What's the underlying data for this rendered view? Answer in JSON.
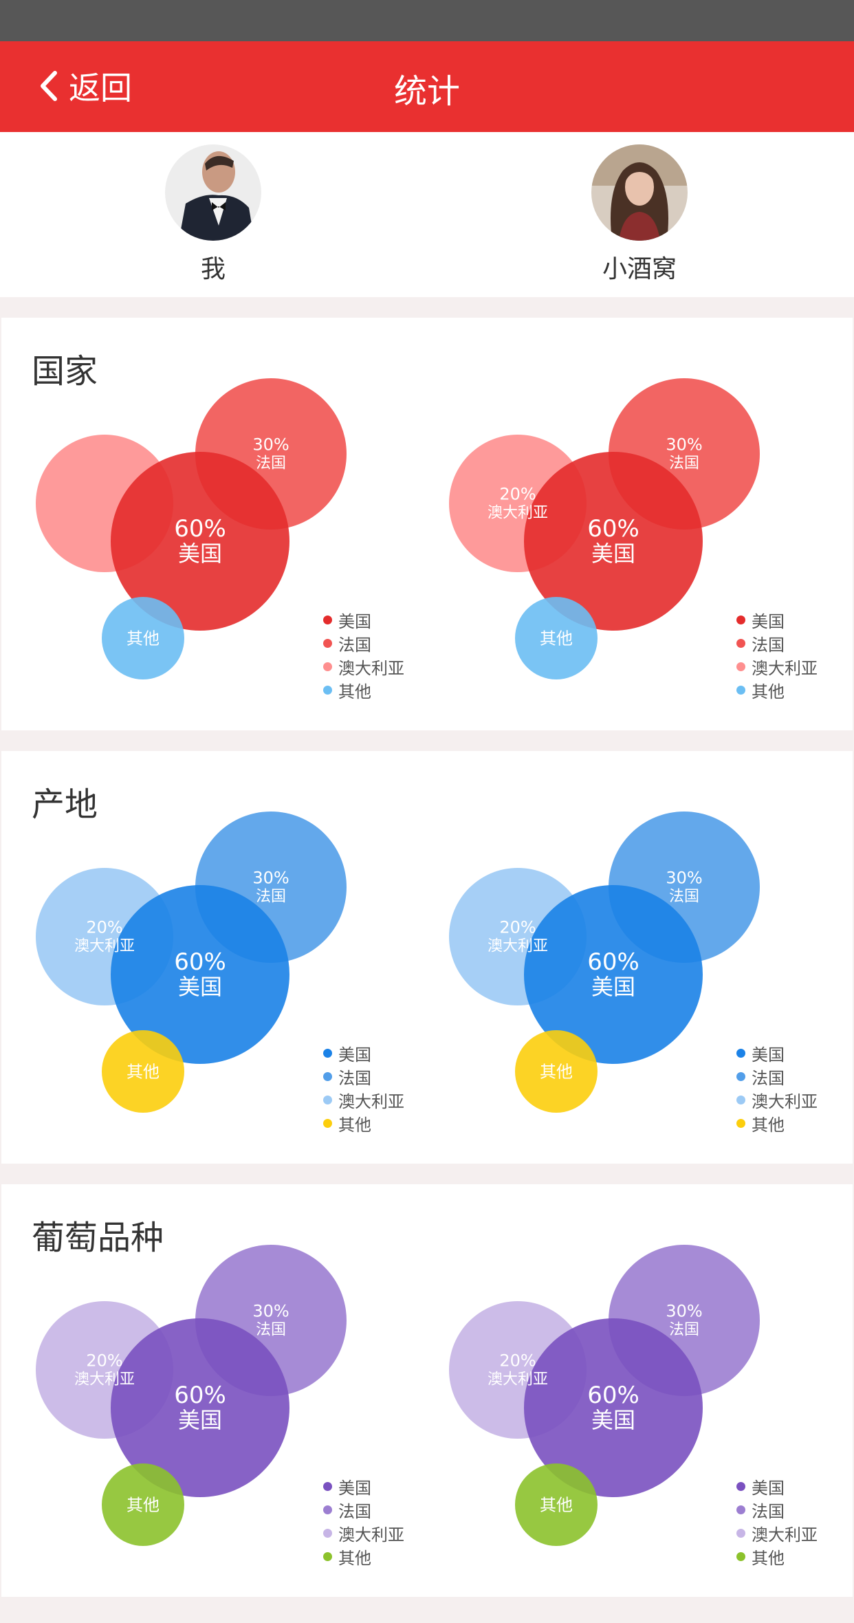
{
  "nav": {
    "back_label": "返回",
    "title": "统计"
  },
  "users": [
    {
      "name": "我",
      "avatar": "man-avatar"
    },
    {
      "name": "小酒窝",
      "avatar": "woman-avatar"
    }
  ],
  "sections": [
    {
      "title": "国家",
      "colors": {
        "usa": "#e42c2c",
        "france": "#f15452",
        "australia": "#fe8f8f",
        "other": "#6bbef3"
      },
      "left": {
        "usa": [
          "60%",
          "美国"
        ],
        "france": [
          "30%",
          "法国"
        ],
        "australia": [],
        "other": [
          "其他"
        ]
      },
      "right": {
        "usa": [
          "60%",
          "美国"
        ],
        "france": [
          "30%",
          "法国"
        ],
        "australia": [
          "20%",
          "澳大利亚"
        ],
        "other": [
          "其他"
        ]
      },
      "legend": [
        "美国",
        "法国",
        "澳大利亚",
        "其他"
      ]
    },
    {
      "title": "产地",
      "colors": {
        "usa": "#1b82e7",
        "france": "#529ee9",
        "australia": "#9ccaf5",
        "other": "#fcce0d"
      },
      "left": {
        "usa": [
          "60%",
          "美国"
        ],
        "france": [
          "30%",
          "法国"
        ],
        "australia": [
          "20%",
          "澳大利亚"
        ],
        "other": [
          "其他"
        ]
      },
      "right": {
        "usa": [
          "60%",
          "美国"
        ],
        "france": [
          "30%",
          "法国"
        ],
        "australia": [
          "20%",
          "澳大利亚"
        ],
        "other": [
          "其他"
        ]
      },
      "legend": [
        "美国",
        "法国",
        "澳大利亚",
        "其他"
      ]
    },
    {
      "title": "葡萄品种",
      "colors": {
        "usa": "#7a51c0",
        "france": "#9c7ed1",
        "australia": "#c7b5e6",
        "other": "#8cc22c"
      },
      "left": {
        "usa": [
          "60%",
          "美国"
        ],
        "france": [
          "30%",
          "法国"
        ],
        "australia": [
          "20%",
          "澳大利亚"
        ],
        "other": [
          "其他"
        ]
      },
      "right": {
        "usa": [
          "60%",
          "美国"
        ],
        "france": [
          "30%",
          "法国"
        ],
        "australia": [
          "20%",
          "澳大利亚"
        ],
        "other": [
          "其他"
        ]
      },
      "legend": [
        "美国",
        "法国",
        "澳大利亚",
        "其他"
      ]
    }
  ]
}
